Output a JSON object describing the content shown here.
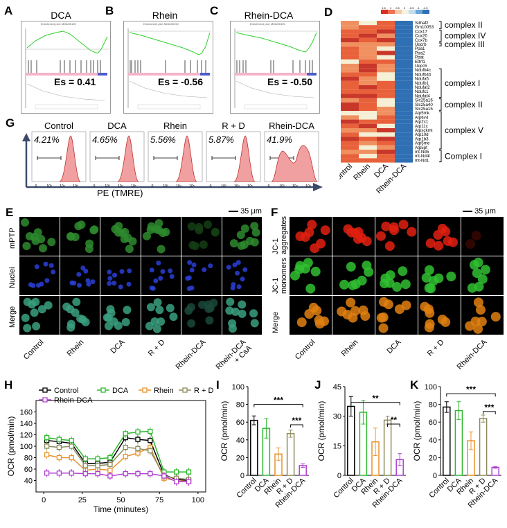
{
  "figure": {
    "panels": {
      "A": "A",
      "B": "B",
      "C": "C",
      "D": "D",
      "E": "E",
      "F": "F",
      "G": "G",
      "H": "H",
      "I": "I",
      "J": "J",
      "K": "K"
    }
  },
  "gsea": [
    {
      "title": "DCA",
      "es": "Es = 0.41",
      "subtitle": "Enrichment plot: MMU00190"
    },
    {
      "title": "Rhein",
      "es": "Es = -0.56",
      "subtitle": "Enrichment plot: MMU00190"
    },
    {
      "title": "Rhein-DCA",
      "es": "Es = -0.50",
      "subtitle": "Enrichment plot: MMU00190"
    }
  ],
  "heatmap": {
    "genes": [
      "Sdhaf2",
      "Gm10053",
      "Cox17",
      "Cox20",
      "Cox7b",
      "Uqcrb",
      "Ppa1",
      "Ppa2",
      "Ppat",
      "Etfrf1",
      "Uqcc5",
      "Ndufb4c",
      "Ndufb4b",
      "Ndufa5",
      "Ndufb1",
      "Ndufaf2",
      "Ndufc1",
      "Ndufaf4",
      "Slc25a16",
      "Slc25a40",
      "Slc25a15",
      "Atp5mk",
      "Atp6v4",
      "Atp2c1",
      "Atp11c",
      "Atpsckmt",
      "Atp10d",
      "Atp1b3",
      "Atp5me",
      "Atp5pf",
      "mt-Nd5",
      "mt-Nd4l",
      "mt-Nd1"
    ],
    "columns": [
      "Control",
      "Rhein",
      "DCA",
      "Rhein-DCA"
    ],
    "scale_labels": [
      "1.5",
      "1",
      "0.5",
      "0",
      "-0.5",
      "-1",
      "-1.5"
    ],
    "complexes": [
      {
        "label": "complex II"
      },
      {
        "label": "complex IV"
      },
      {
        "label": "complex III"
      },
      {
        "label": "complex I"
      },
      {
        "label": "complex II"
      },
      {
        "label": "complex V"
      },
      {
        "label": "Complex I"
      }
    ]
  },
  "flow": {
    "groups": [
      {
        "title": "Control",
        "pct": "4.21%"
      },
      {
        "title": "DCA",
        "pct": "4.65%"
      },
      {
        "title": "Rhein",
        "pct": "5.56%"
      },
      {
        "title": "R + D",
        "pct": "5.87%"
      },
      {
        "title": "Rhein-DCA",
        "pct": "41.9%"
      }
    ],
    "axis_label": "PE (TMRE)",
    "tick_labels": [
      "0",
      "10³",
      "10⁴",
      "10⁵"
    ]
  },
  "micro_e": {
    "scale": "35 μm",
    "rows": [
      "mPTP",
      "Nuclei",
      "Merge"
    ],
    "cols": [
      "Control",
      "Rhein",
      "DCA",
      "R + D",
      "Rhein-DCA",
      "Rhein-DCA\n+ CsA"
    ],
    "col_line1": [
      "Control",
      "Rhein",
      "DCA",
      "R + D",
      "Rhein-DCA",
      "Rhein-DCA"
    ],
    "col_line2": [
      "",
      "",
      "",
      "",
      "",
      "+ CsA"
    ],
    "colors": {
      "mptp": "#2e8b2e",
      "nuclei": "#2a3fd8",
      "merge": "#3aa080"
    }
  },
  "micro_f": {
    "scale": "35 μm",
    "rows": [
      "JC-1 aggregates",
      "JC-1 monomers",
      "Merge"
    ],
    "row_line1": [
      "JC-1",
      "JC-1",
      ""
    ],
    "row_line2": [
      "aggregates",
      "monomers",
      "Merge"
    ],
    "cols": [
      "Control",
      "Rhein",
      "DCA",
      "R + D",
      "Rhein-DCA"
    ],
    "colors": {
      "agg": "#e02010",
      "mono": "#30c030",
      "merge": "#e08010"
    }
  },
  "chart_data": [
    {
      "id": "H",
      "type": "line",
      "xlabel": "Time (minutes)",
      "ylabel": "OCR (pmol/min)",
      "xlim": [
        -5,
        105
      ],
      "ylim": [
        20,
        180
      ],
      "xticks": [
        0,
        25,
        50,
        75,
        100
      ],
      "yticks": [
        40,
        60,
        80,
        100,
        120,
        140,
        160
      ],
      "x": [
        2,
        10,
        18,
        27,
        35,
        43,
        53,
        61,
        69,
        78,
        86,
        94
      ],
      "series": [
        {
          "name": "Control",
          "color": "#000000",
          "values": [
            110,
            108,
            105,
            70,
            70,
            72,
            115,
            112,
            110,
            50,
            42,
            40
          ]
        },
        {
          "name": "DCA",
          "color": "#2db82d",
          "values": [
            115,
            112,
            110,
            78,
            78,
            80,
            122,
            125,
            126,
            55,
            55,
            55
          ]
        },
        {
          "name": "Rhein",
          "color": "#e8922a",
          "values": [
            85,
            80,
            80,
            58,
            60,
            58,
            82,
            88,
            98,
            44,
            40,
            38
          ]
        },
        {
          "name": "R + D",
          "color": "#8c8a5a",
          "values": [
            100,
            98,
            100,
            66,
            66,
            68,
            98,
            96,
            92,
            48,
            44,
            42
          ]
        },
        {
          "name": "Rhein-DCA",
          "color": "#b040d0",
          "values": [
            53,
            53,
            53,
            52,
            52,
            48,
            52,
            52,
            52,
            48,
            38,
            38
          ]
        }
      ]
    },
    {
      "id": "I",
      "type": "bar",
      "ylabel": "OCR (pmol/min)",
      "ylim": [
        0,
        100
      ],
      "yticks": [
        0,
        20,
        40,
        60,
        80,
        100
      ],
      "categories": [
        "Control",
        "DCA",
        "Rhein",
        "R + D",
        "Rhein-DCA"
      ],
      "values": [
        62,
        53,
        24,
        47,
        11
      ],
      "errors": [
        5,
        11,
        7,
        4,
        2
      ],
      "colors": [
        "#000000",
        "#2db82d",
        "#e8922a",
        "#8c8a5a",
        "#b040d0"
      ],
      "sig": [
        {
          "label": "***"
        },
        {
          "label": "***"
        }
      ]
    },
    {
      "id": "J",
      "type": "bar",
      "ylabel": "OCR (pmol/min)",
      "ylim": [
        0,
        45
      ],
      "yticks": [
        0,
        15,
        30,
        45
      ],
      "categories": [
        "Control",
        "DCA",
        "Rhein",
        "R + D",
        "Rhein-DCA"
      ],
      "values": [
        35,
        32,
        17,
        28,
        8
      ],
      "errors": [
        5,
        6,
        7,
        2,
        3
      ],
      "colors": [
        "#000000",
        "#2db82d",
        "#e8922a",
        "#8c8a5a",
        "#b040d0"
      ],
      "sig": [
        {
          "label": "**"
        },
        {
          "label": "**"
        }
      ]
    },
    {
      "id": "K",
      "type": "bar",
      "ylabel": "OCR (pmol/min)",
      "ylim": [
        0,
        100
      ],
      "yticks": [
        0,
        20,
        40,
        60,
        80,
        100
      ],
      "categories": [
        "Control",
        "DCA",
        "Rhein",
        "R + D",
        "Rhein-DCA"
      ],
      "values": [
        77,
        73,
        39,
        64,
        9
      ],
      "errors": [
        6,
        10,
        10,
        4,
        1
      ],
      "colors": [
        "#000000",
        "#2db82d",
        "#e8922a",
        "#8c8a5a",
        "#b040d0"
      ],
      "sig": [
        {
          "label": "***"
        },
        {
          "label": "***"
        }
      ]
    }
  ]
}
